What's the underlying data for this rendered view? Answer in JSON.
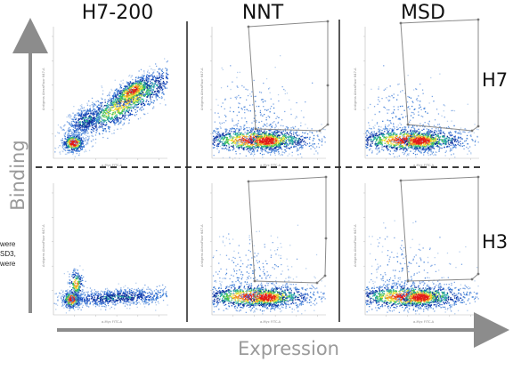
{
  "columns": [
    "H7-200",
    "NNT",
    "MSD"
  ],
  "rows": [
    "H7",
    "H3"
  ],
  "axes": {
    "y_title": "Binding",
    "x_title": "Expression",
    "panel_ylabel": "Antigens AlexaFluor 647-A",
    "panel_xlabel": "a-Myc FITC-A",
    "colors": {
      "arrow": "#8c8c8c",
      "divider": "#222222",
      "gate": "#8a8a8a"
    }
  },
  "side_text": [
    "were",
    "SD3,",
    "were"
  ],
  "density_palette": [
    "#b8d0ee",
    "#7ea7e5",
    "#3f7fd6",
    "#1c4fc0",
    "#0d2f98",
    "#23a8a0",
    "#46c24a",
    "#f2e23a",
    "#ef8a24",
    "#e21b1b"
  ]
}
